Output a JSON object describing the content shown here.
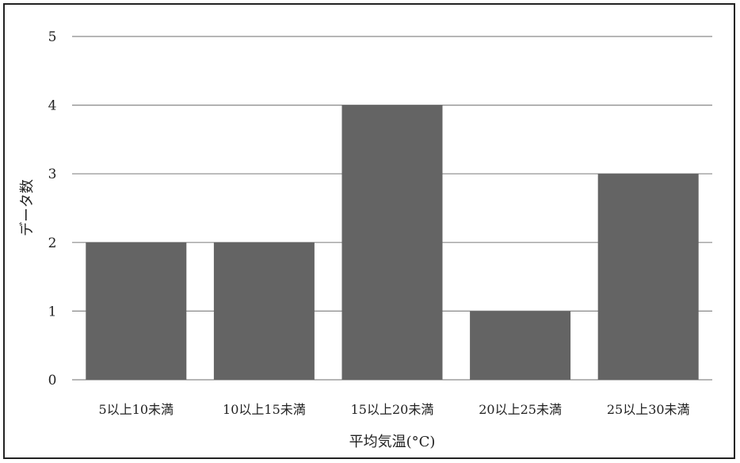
{
  "chart_data": {
    "type": "bar",
    "categories": [
      "5以上10未満",
      "10以上15未満",
      "15以上20未満",
      "20以上25未満",
      "25以上30未満"
    ],
    "values": [
      2,
      2,
      4,
      1,
      3
    ],
    "xlabel": "平均気温(°C)",
    "ylabel": "データ数",
    "ylim": [
      0,
      5
    ],
    "yticks": [
      "0",
      "1",
      "2",
      "3",
      "4",
      "5"
    ],
    "grid": true,
    "bar_color": "#646464",
    "grid_color": "#8a8a8a"
  }
}
